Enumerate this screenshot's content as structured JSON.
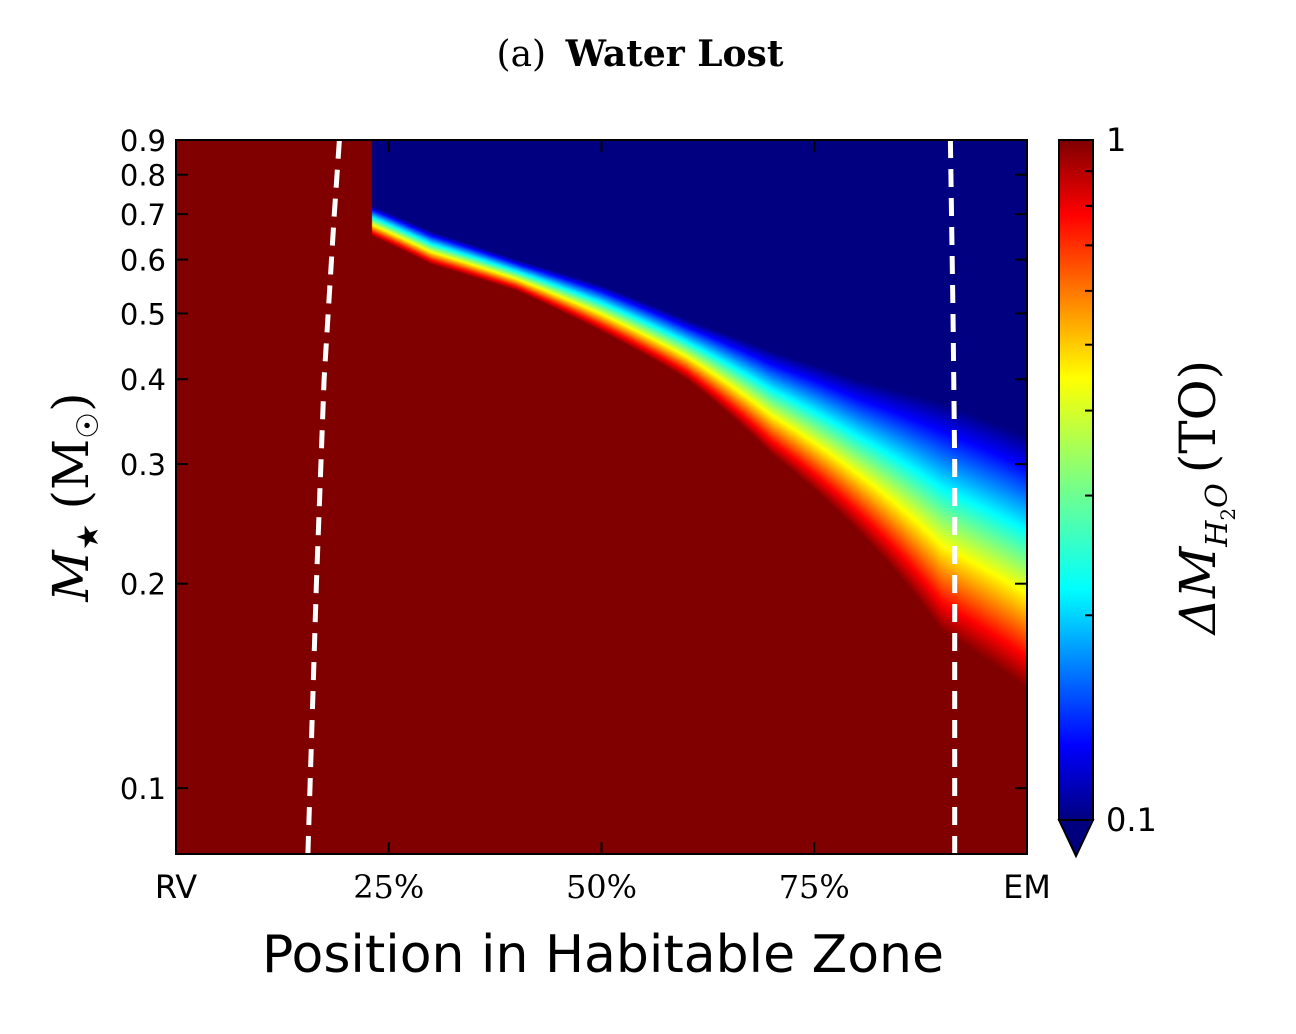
{
  "chart_data": {
    "type": "heatmap",
    "title_prefix": "(a)",
    "title_main": "Water Lost",
    "xlabel": "Position in Habitable Zone",
    "ylabel_symbol": "M",
    "ylabel_subscript": "★",
    "ylabel_unit": "(M",
    "ylabel_unit_sub": "☉",
    "ylabel_close": ")",
    "x_ticks": [
      {
        "label": "RV",
        "value": 0
      },
      {
        "label": "25%",
        "value": 25
      },
      {
        "label": "50%",
        "value": 50
      },
      {
        "label": "75%",
        "value": 75
      },
      {
        "label": "EM",
        "value": 100
      }
    ],
    "xlim": [
      0,
      100
    ],
    "y_scale": "log",
    "ylim": [
      0.08,
      0.9
    ],
    "y_ticks": [
      {
        "label": "0.9",
        "value": 0.9
      },
      {
        "label": "0.8",
        "value": 0.8
      },
      {
        "label": "0.7",
        "value": 0.7
      },
      {
        "label": "0.6",
        "value": 0.6
      },
      {
        "label": "0.5",
        "value": 0.5
      },
      {
        "label": "0.4",
        "value": 0.4
      },
      {
        "label": "0.3",
        "value": 0.3
      },
      {
        "label": "0.2",
        "value": 0.2
      },
      {
        "label": "0.1",
        "value": 0.1
      }
    ],
    "colorbar": {
      "scale": "log",
      "colormap": "jet",
      "min": 0.1,
      "max": 1,
      "min_label": "0.1",
      "max_label": "1",
      "extend": "min",
      "label_prefix": "ΔM",
      "label_sub": "H",
      "label_subsub": "2",
      "label_sub_after": "O",
      "label_suffix": "(TO)"
    },
    "contours": [
      {
        "style": "dashed",
        "color": "#ffffff",
        "points": [
          [
            15.5,
            0.08
          ],
          [
            16.5,
            0.2
          ],
          [
            17.4,
            0.4
          ],
          [
            18.6,
            0.7
          ],
          [
            19.2,
            0.9
          ]
        ]
      },
      {
        "style": "dashed",
        "color": "#ffffff",
        "points": [
          [
            91.5,
            0.08
          ],
          [
            91.5,
            0.3
          ],
          [
            91.3,
            0.5
          ],
          [
            91.0,
            0.9
          ]
        ]
      }
    ],
    "transition_band": [
      {
        "x": 23,
        "m_top": 0.72,
        "m_bottom": 0.65
      },
      {
        "x": 30,
        "m_top": 0.66,
        "m_bottom": 0.59
      },
      {
        "x": 40,
        "m_top": 0.6,
        "m_bottom": 0.54
      },
      {
        "x": 50,
        "m_top": 0.55,
        "m_bottom": 0.47
      },
      {
        "x": 60,
        "m_top": 0.49,
        "m_bottom": 0.4
      },
      {
        "x": 70,
        "m_top": 0.44,
        "m_bottom": 0.31
      },
      {
        "x": 80,
        "m_top": 0.4,
        "m_bottom": 0.24
      },
      {
        "x": 90,
        "m_top": 0.37,
        "m_bottom": 0.17
      },
      {
        "x": 100,
        "m_top": 0.33,
        "m_bottom": 0.14
      }
    ]
  }
}
